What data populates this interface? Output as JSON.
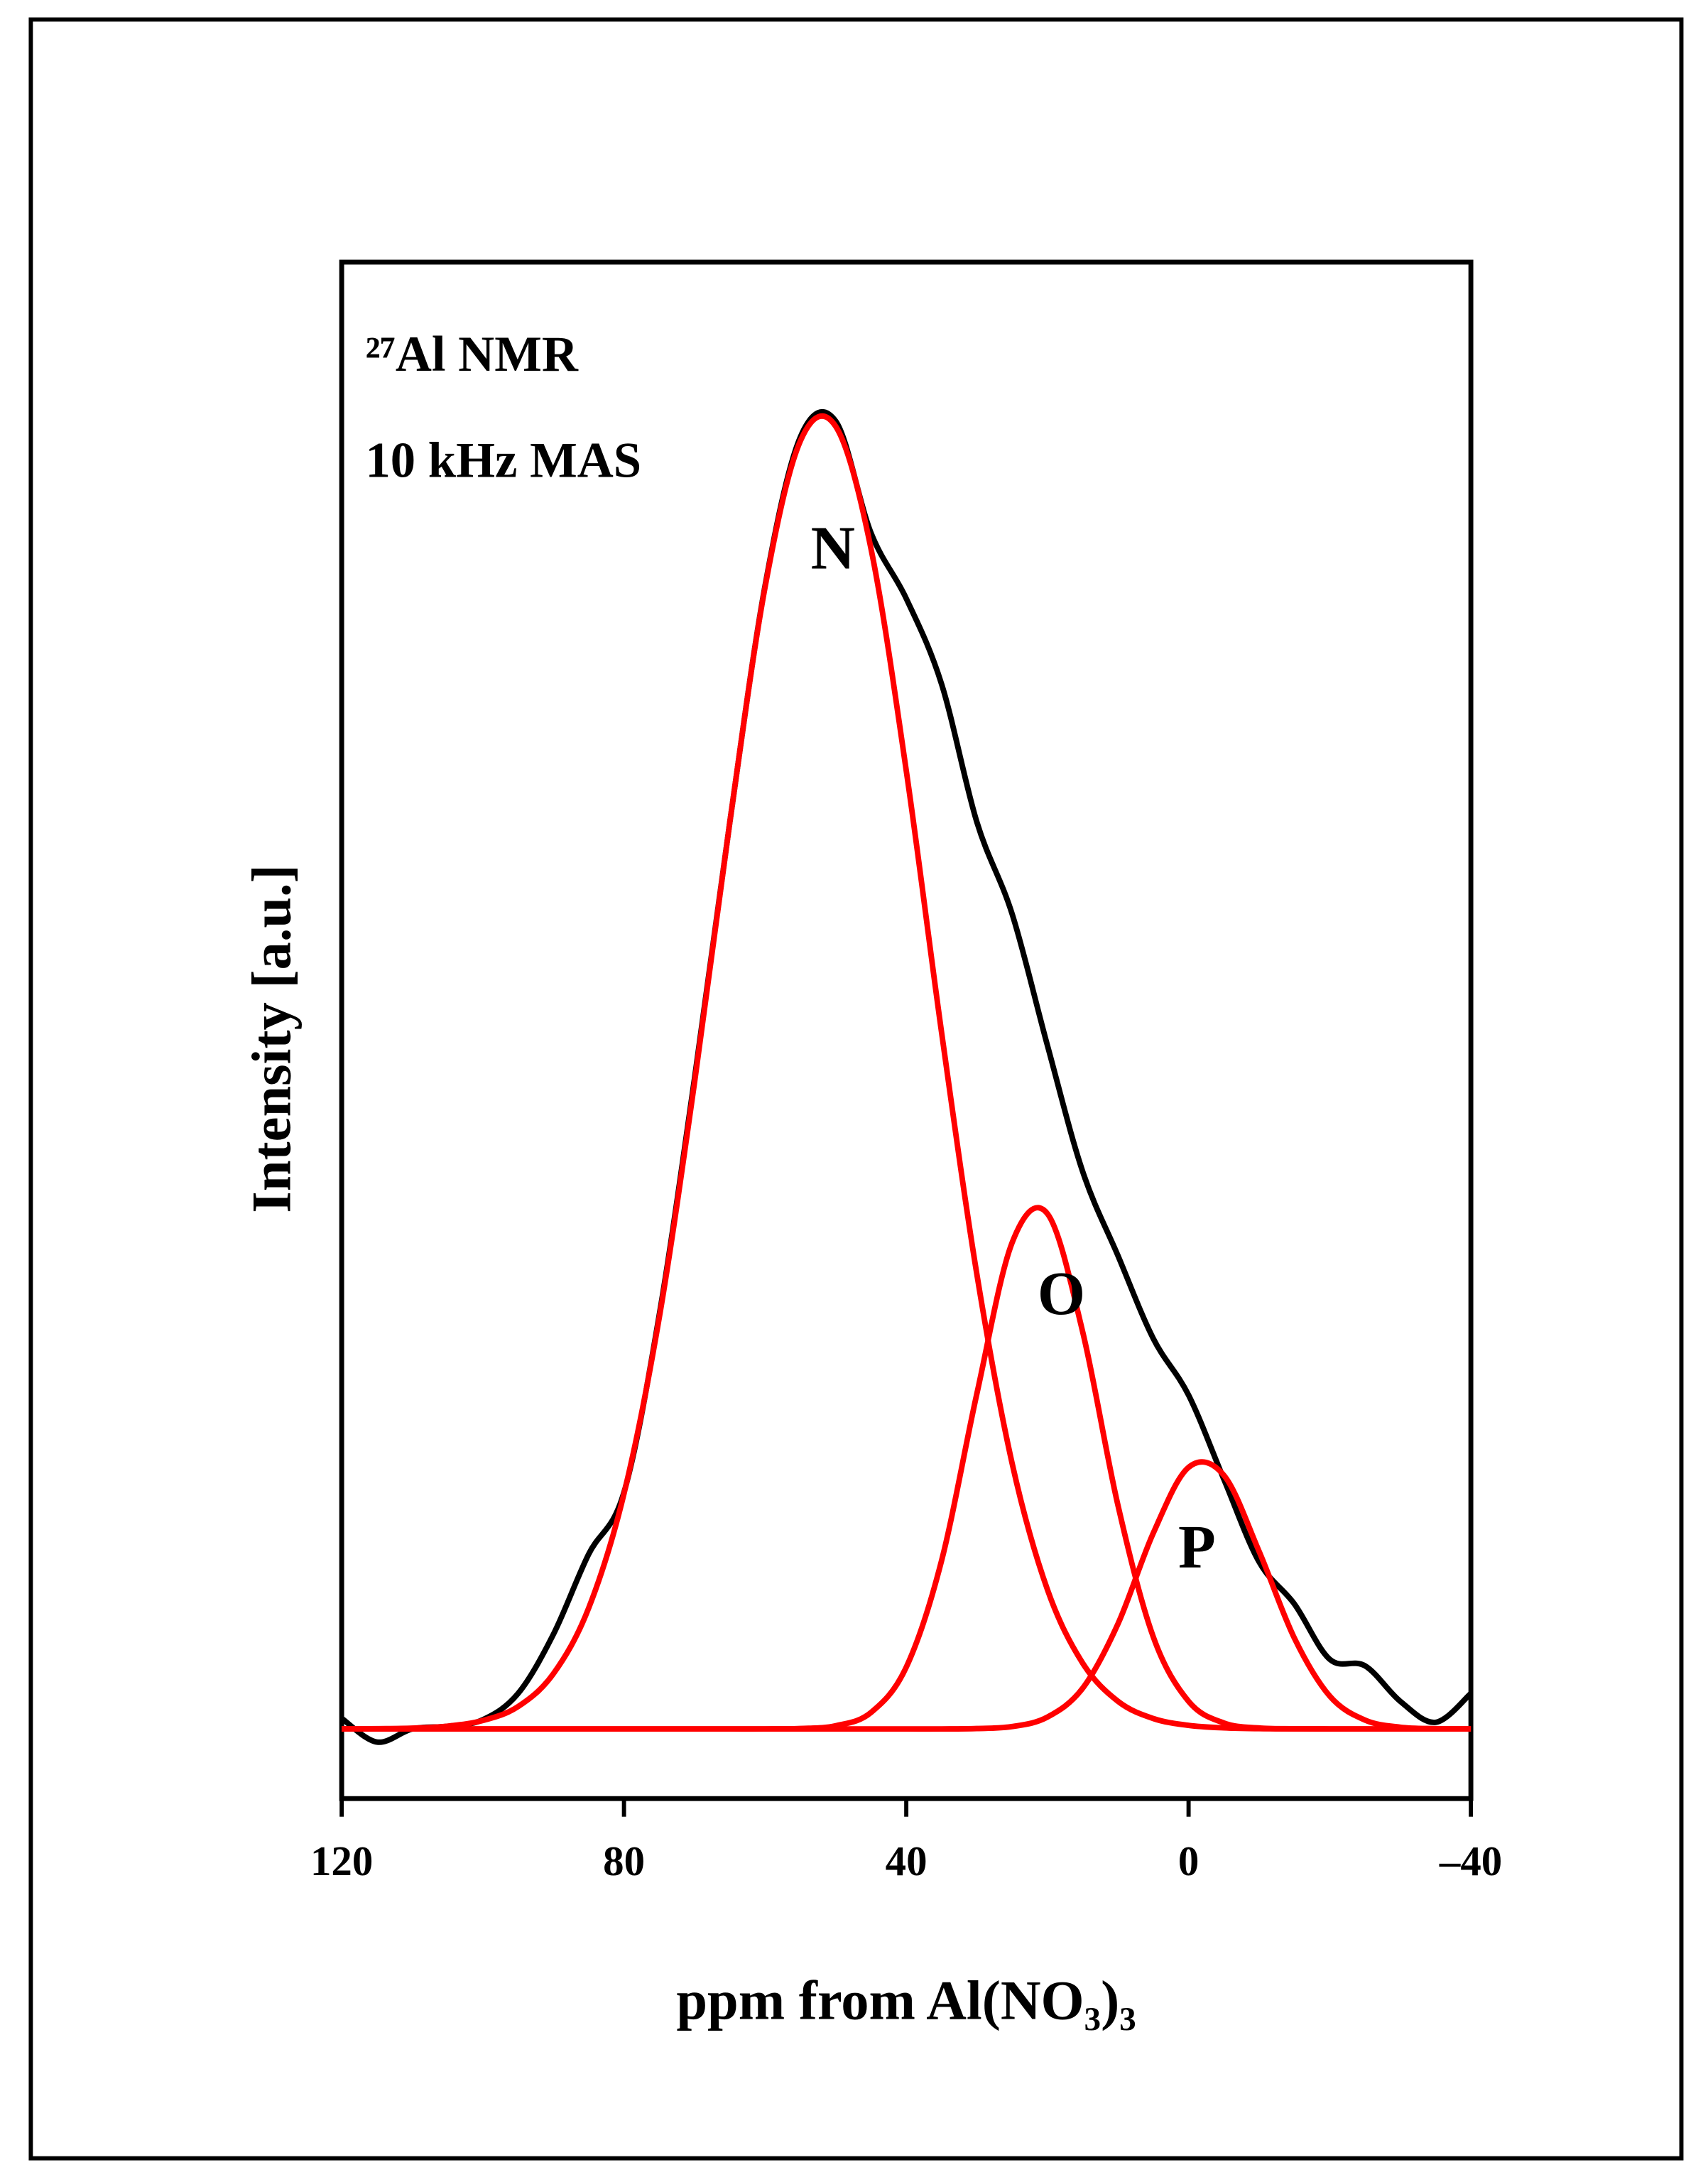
{
  "chart_data": {
    "type": "line",
    "annotations": [
      "²⁷Al NMR",
      "10 kHz MAS"
    ],
    "xlabel": "ppm from Al(NO₃)₃",
    "ylabel": "Intensity [a.u.]",
    "x": [
      120,
      115,
      110,
      105,
      100,
      95,
      90,
      85,
      80,
      75,
      70,
      65,
      60,
      55,
      50,
      45,
      40,
      35,
      30,
      25,
      20,
      15,
      10,
      5,
      0,
      -5,
      -10,
      -15,
      -20,
      -25,
      -30,
      -35,
      -40
    ],
    "series": [
      {
        "color": "#000000",
        "values": [
          0.8,
          -1.0,
          0,
          0.2,
          0.7,
          2.7,
          7.2,
          13.3,
          18,
          31.5,
          49.5,
          69,
          87,
          98.3,
          99.5,
          91,
          86,
          79.5,
          69,
          62,
          52,
          42.4,
          36,
          29.7,
          25.4,
          19,
          12.7,
          9.5,
          5.3,
          4.8,
          2.1,
          0.5,
          2.7
        ]
      },
      {
        "name": "N",
        "color": "#ff0000",
        "values": [
          0,
          0.02,
          0.06,
          0.21,
          0.64,
          1.7,
          4.2,
          9.2,
          17.9,
          31.3,
          49.2,
          69,
          86.9,
          98,
          99.1,
          89.8,
          72.9,
          53,
          34.6,
          20.2,
          10.6,
          5,
          2.1,
          0.79,
          0.27,
          0.08,
          0.02,
          0.01,
          0,
          0,
          0,
          0,
          0
        ]
      },
      {
        "name": "O",
        "color": "#ff0000",
        "values": [
          0,
          0,
          0,
          0,
          0,
          0,
          0,
          0,
          0,
          0,
          0,
          0,
          0,
          0.03,
          0.24,
          1.25,
          4.7,
          12.8,
          25.5,
          37,
          39.2,
          30.2,
          17,
          7,
          2.1,
          0.45,
          0.07,
          0.01,
          0,
          0,
          0,
          0,
          0
        ]
      },
      {
        "name": "P",
        "color": "#ff0000",
        "values": [
          0,
          0,
          0,
          0,
          0,
          0,
          0,
          0,
          0,
          0,
          0,
          0,
          0,
          0,
          0,
          0,
          0,
          0,
          0.03,
          0.18,
          0.9,
          3.1,
          8,
          14.9,
          19.9,
          19.3,
          13.5,
          6.9,
          2.5,
          0.67,
          0.13,
          0.02,
          0
        ]
      }
    ],
    "xlim": [
      120,
      -40
    ],
    "xticks": [
      120,
      80,
      40,
      0,
      {
        "value": -40,
        "label": "–40"
      }
    ],
    "ylim": [
      -5.3,
      111.6
    ]
  }
}
